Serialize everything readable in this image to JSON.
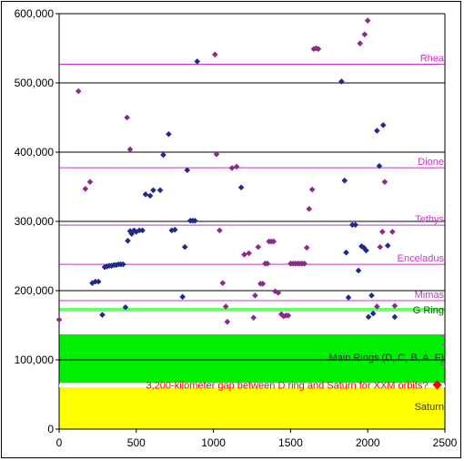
{
  "chart_data": {
    "type": "scatter",
    "title": "",
    "xlabel": "",
    "ylabel": "",
    "xlim": [
      0,
      2500
    ],
    "ylim": [
      0,
      600000
    ],
    "x_ticks": [
      0,
      500,
      1000,
      1500,
      2000,
      2500
    ],
    "x_tick_labels": [
      "0",
      "500",
      "1000",
      "1500",
      "2000",
      "2500"
    ],
    "y_ticks": [
      0,
      100000,
      200000,
      300000,
      400000,
      500000,
      600000
    ],
    "y_tick_labels": [
      "0",
      "100,000",
      "200,000",
      "300,000",
      "400,000",
      "500,000",
      "600,000"
    ],
    "grid": "horizontal",
    "colors": {
      "series_a": "#1f2a8c",
      "series_b": "#8b2a8b",
      "moon_lines": "#cc33cc",
      "g_ring": "#66ff66",
      "main_rings": "#00ee00",
      "saturn": "#ffff00",
      "gap_marker": "#ff0000",
      "annotation_red": "#ff0000",
      "ring_label": "#333333"
    },
    "bands": [
      {
        "name": "saturn",
        "y0": 0,
        "y1": 60300
      },
      {
        "name": "main-rings",
        "y0": 66900,
        "y1": 136800
      },
      {
        "name": "g-ring",
        "y0": 170000,
        "y1": 175000
      }
    ],
    "reference_lines": [
      {
        "label": "Rhea",
        "y": 527000
      },
      {
        "label": "Dione",
        "y": 377400
      },
      {
        "label": "Tethys",
        "y": 294600
      },
      {
        "label": "Enceladus",
        "y": 238000
      },
      {
        "label": "Mimas",
        "y": 185500
      }
    ],
    "band_labels": {
      "g_ring": "G Ring",
      "main_rings": "Main Rings (D, C, B, A, F)",
      "saturn": "Saturn",
      "gap": "3,200-kilometer gap between D ring and Saturn for XXM orbits?"
    },
    "gap_marker_point": {
      "x": 2450,
      "y": 64000
    },
    "series": [
      {
        "values": [
          [
            215,
            211000
          ],
          [
            235,
            213000
          ],
          [
            255,
            213000
          ],
          [
            280,
            165000
          ],
          [
            295,
            234000
          ],
          [
            310,
            235000
          ],
          [
            325,
            236000
          ],
          [
            340,
            236000
          ],
          [
            355,
            237000
          ],
          [
            370,
            237000
          ],
          [
            385,
            238000
          ],
          [
            400,
            238000
          ],
          [
            415,
            238000
          ],
          [
            430,
            176000
          ],
          [
            445,
            272000
          ],
          [
            460,
            286000
          ],
          [
            470,
            282000
          ],
          [
            485,
            287000
          ],
          [
            500,
            285000
          ],
          [
            520,
            287000
          ],
          [
            540,
            287000
          ],
          [
            560,
            339000
          ],
          [
            590,
            337000
          ],
          [
            610,
            345000
          ],
          [
            655,
            345000
          ],
          [
            675,
            396000
          ],
          [
            710,
            426000
          ],
          [
            730,
            287000
          ],
          [
            750,
            288000
          ],
          [
            800,
            191000
          ],
          [
            815,
            263000
          ],
          [
            830,
            374000
          ],
          [
            850,
            301000
          ],
          [
            865,
            301000
          ],
          [
            880,
            301000
          ],
          [
            895,
            531000
          ],
          [
            1180,
            349000
          ],
          [
            1830,
            502000
          ],
          [
            1850,
            359000
          ],
          [
            1860,
            255000
          ],
          [
            1875,
            190000
          ],
          [
            1900,
            295000
          ],
          [
            1920,
            295000
          ],
          [
            1940,
            229000
          ],
          [
            1960,
            264000
          ],
          [
            1975,
            262000
          ],
          [
            1990,
            258000
          ],
          [
            2005,
            162000
          ],
          [
            2025,
            193000
          ],
          [
            2035,
            167000
          ],
          [
            2060,
            431000
          ],
          [
            2075,
            380000
          ],
          [
            2100,
            439000
          ],
          [
            2130,
            265000
          ],
          [
            2175,
            162000
          ]
        ]
      },
      {
        "values": [
          [
            0,
            158000
          ],
          [
            125,
            488000
          ],
          [
            170,
            347000
          ],
          [
            200,
            357000
          ],
          [
            440,
            450000
          ],
          [
            460,
            404000
          ],
          [
            1010,
            541000
          ],
          [
            1020,
            397000
          ],
          [
            1040,
            287000
          ],
          [
            1060,
            211000
          ],
          [
            1080,
            177000
          ],
          [
            1090,
            155000
          ],
          [
            1120,
            377000
          ],
          [
            1150,
            379000
          ],
          [
            1200,
            252000
          ],
          [
            1230,
            254000
          ],
          [
            1260,
            161000
          ],
          [
            1270,
            193000
          ],
          [
            1290,
            263000
          ],
          [
            1305,
            210000
          ],
          [
            1320,
            210000
          ],
          [
            1335,
            239000
          ],
          [
            1350,
            239000
          ],
          [
            1360,
            271000
          ],
          [
            1375,
            271000
          ],
          [
            1390,
            271000
          ],
          [
            1400,
            199000
          ],
          [
            1420,
            197000
          ],
          [
            1440,
            166000
          ],
          [
            1455,
            163000
          ],
          [
            1470,
            164000
          ],
          [
            1485,
            164000
          ],
          [
            1500,
            239000
          ],
          [
            1515,
            239000
          ],
          [
            1530,
            239000
          ],
          [
            1545,
            239000
          ],
          [
            1560,
            239000
          ],
          [
            1575,
            239000
          ],
          [
            1590,
            239000
          ],
          [
            1605,
            262000
          ],
          [
            1620,
            318000
          ],
          [
            1640,
            346000
          ],
          [
            1650,
            549000
          ],
          [
            1665,
            550000
          ],
          [
            1680,
            549000
          ],
          [
            1950,
            557000
          ],
          [
            1980,
            570000
          ],
          [
            2000,
            590000
          ],
          [
            2060,
            177000
          ],
          [
            2080,
            263000
          ],
          [
            2095,
            285000
          ],
          [
            2110,
            357000
          ],
          [
            2160,
            285000
          ],
          [
            2175,
            178000
          ]
        ]
      }
    ]
  }
}
